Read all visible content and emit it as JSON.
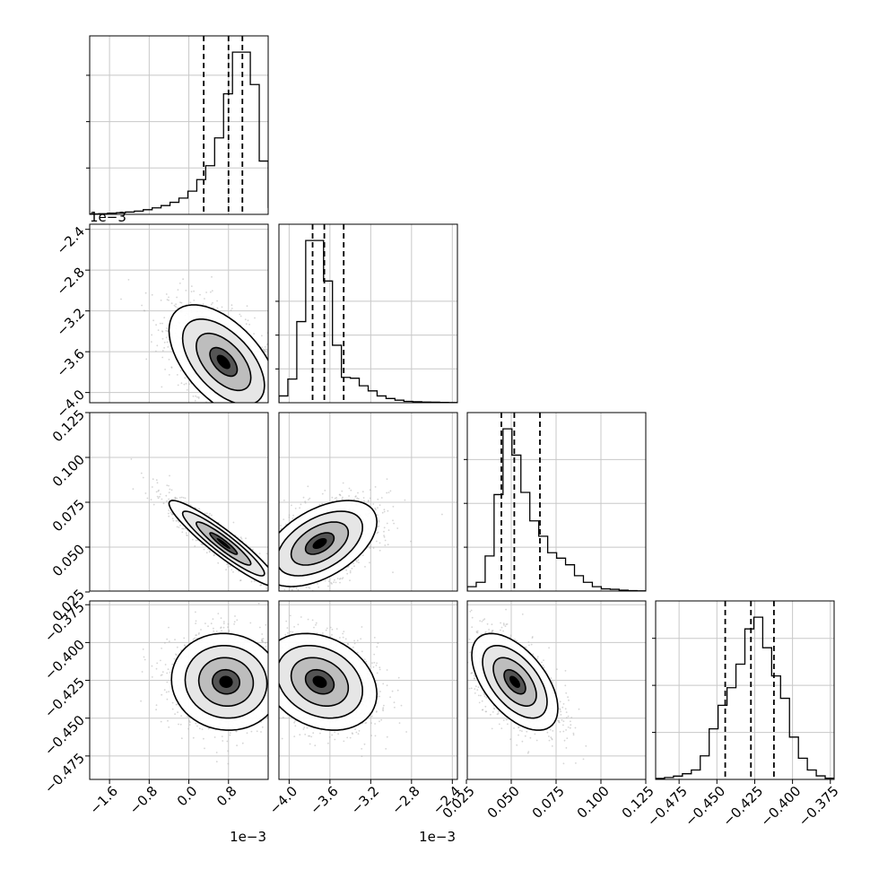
{
  "chart_data": {
    "type": "corner",
    "n_params": 4,
    "params": [
      {
        "index": 0,
        "range": [
          -2.0,
          1.6
        ],
        "ticks": [
          -1.6,
          -0.8,
          0.0,
          0.8
        ],
        "tick_labels": [
          "−1.6",
          "−0.8",
          "0.0",
          "0.8"
        ],
        "offset_label": "1e−3",
        "quantiles": [
          0.3,
          0.8,
          1.08
        ]
      },
      {
        "index": 1,
        "range": [
          -4.1,
          -2.35
        ],
        "ticks": [
          -4.0,
          -3.6,
          -3.2,
          -2.8,
          -2.4
        ],
        "tick_labels": [
          "−4.0",
          "−3.6",
          "−3.2",
          "−2.8",
          "−2.4"
        ],
        "offset_label": "1e−3",
        "quantiles": [
          -3.77,
          -3.655,
          -3.465
        ]
      },
      {
        "index": 2,
        "range": [
          0.0255,
          0.125
        ],
        "ticks": [
          0.025,
          0.05,
          0.075,
          0.1,
          0.125
        ],
        "tick_labels": [
          "0.025",
          "0.050",
          "0.075",
          "0.100",
          "0.125"
        ],
        "offset_label": "",
        "quantiles": [
          0.0445,
          0.0517,
          0.066
        ]
      },
      {
        "index": 3,
        "range": [
          -0.4905,
          -0.3725
        ],
        "ticks": [
          -0.475,
          -0.45,
          -0.425,
          -0.4,
          -0.375
        ],
        "tick_labels": [
          "−0.475",
          "−0.450",
          "−0.425",
          "−0.400",
          "−0.375"
        ],
        "offset_label": "",
        "quantiles": [
          -0.4445,
          -0.4275,
          -0.4123
        ]
      }
    ],
    "histograms": [
      {
        "param": 0,
        "bin_edges_start": -2.0,
        "bin_width": 0.18,
        "counts": [
          2,
          3,
          5,
          7,
          10,
          14,
          20,
          28,
          38,
          52,
          70,
          100,
          150,
          210,
          330,
          520,
          700,
          700,
          560,
          230,
          30,
          0
        ]
      },
      {
        "param": 1,
        "bin_edges_start": -4.1,
        "bin_width": 0.0875,
        "counts": [
          40,
          140,
          480,
          960,
          960,
          720,
          340,
          150,
          145,
          100,
          70,
          40,
          25,
          15,
          8,
          6,
          4,
          3,
          2,
          1
        ]
      },
      {
        "param": 2,
        "bin_edges_start": 0.0255,
        "bin_width": 0.00498,
        "counts": [
          20,
          40,
          160,
          440,
          740,
          620,
          450,
          320,
          250,
          175,
          150,
          120,
          70,
          40,
          20,
          10,
          8,
          4,
          2,
          1
        ]
      },
      {
        "param": 3,
        "bin_edges_start": -0.4905,
        "bin_width": 0.0059,
        "counts": [
          4,
          8,
          14,
          24,
          40,
          100,
          215,
          315,
          390,
          490,
          640,
          690,
          560,
          440,
          345,
          180,
          90,
          40,
          15,
          5
        ]
      }
    ],
    "scatter_2d": [
      {
        "x_param": 0,
        "y_param": 1,
        "mean": [
          0.7,
          -3.7
        ],
        "sd": [
          0.55,
          0.28
        ],
        "rho": -0.55
      },
      {
        "x_param": 0,
        "y_param": 2,
        "mean": [
          0.7,
          0.052
        ],
        "sd": [
          0.55,
          0.012
        ],
        "rho": -0.93
      },
      {
        "x_param": 1,
        "y_param": 2,
        "mean": [
          -3.7,
          0.052
        ],
        "sd": [
          0.28,
          0.012
        ],
        "rho": 0.5
      },
      {
        "x_param": 0,
        "y_param": 3,
        "mean": [
          0.75,
          -0.426
        ],
        "sd": [
          0.55,
          0.016
        ],
        "rho": -0.05
      },
      {
        "x_param": 1,
        "y_param": 3,
        "mean": [
          -3.7,
          -0.426
        ],
        "sd": [
          0.28,
          0.016
        ],
        "rho": -0.25
      },
      {
        "x_param": 2,
        "y_param": 3,
        "mean": [
          0.052,
          -0.426
        ],
        "sd": [
          0.012,
          0.016
        ],
        "rho": -0.55
      }
    ],
    "contour_levels_sigma": [
      0.5,
      1.0,
      1.5,
      2.0
    ],
    "grid": true,
    "colors": {
      "hist": "#000000",
      "points": "#b3b3b3",
      "contour": "#000000",
      "grid": "#c8c8c8",
      "density": "#000000"
    }
  }
}
